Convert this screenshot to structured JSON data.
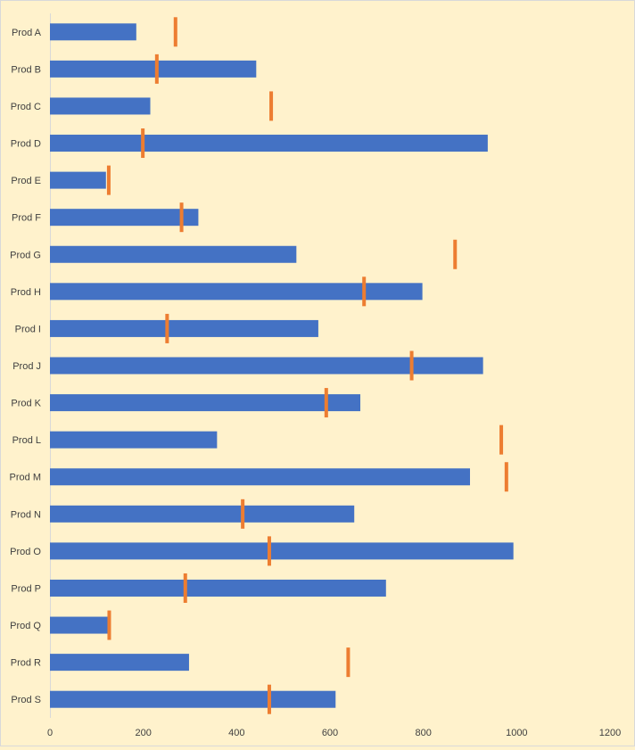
{
  "chart_data": {
    "type": "bar",
    "orientation": "horizontal",
    "title": "",
    "xlabel": "",
    "ylabel": "",
    "categories": [
      "Prod A",
      "Prod B",
      "Prod C",
      "Prod D",
      "Prod E",
      "Prod F",
      "Prod G",
      "Prod H",
      "Prod I",
      "Prod J",
      "Prod K",
      "Prod L",
      "Prod M",
      "Prod N",
      "Prod O",
      "Prod P",
      "Prod Q",
      "Prod R",
      "Prod S"
    ],
    "series": [
      {
        "kind": "bar",
        "color": "#4472c4",
        "values": [
          185,
          442,
          215,
          938,
          120,
          318,
          528,
          798,
          575,
          928,
          665,
          358,
          900,
          652,
          993,
          720,
          128,
          298,
          612
        ]
      },
      {
        "kind": "marker",
        "color": "#ed7d31",
        "values": [
          269,
          229,
          474,
          199,
          126,
          282,
          868,
          673,
          251,
          775,
          592,
          967,
          978,
          413,
          470,
          290,
          127,
          639,
          470
        ]
      }
    ],
    "xlim": [
      0,
      1200
    ],
    "xticks": [
      "0",
      "200",
      "400",
      "600",
      "800",
      "1000",
      "1200"
    ],
    "grid": false,
    "legend": "none"
  }
}
